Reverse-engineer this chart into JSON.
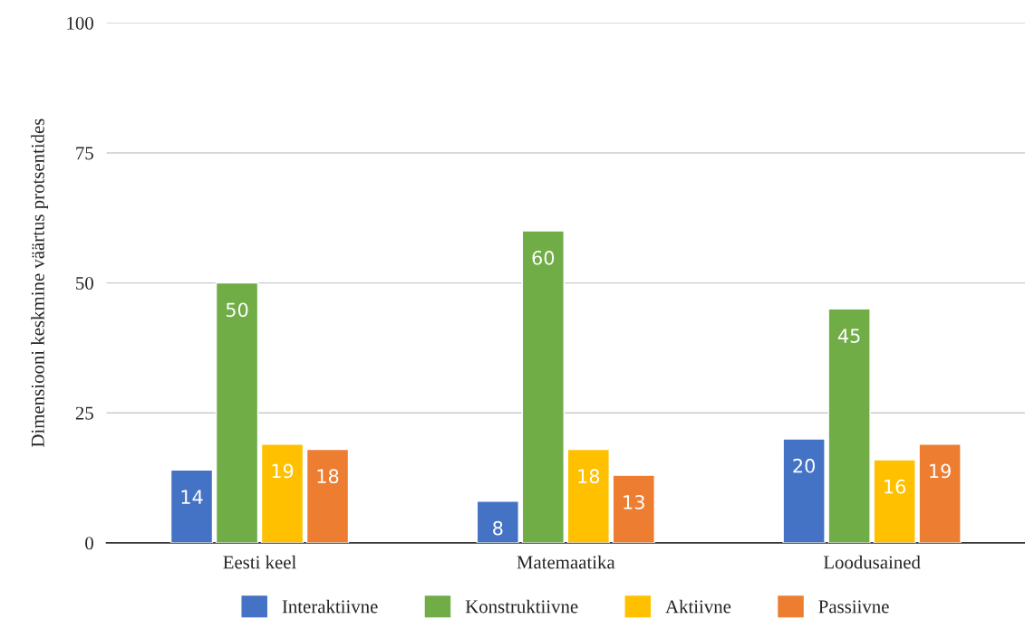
{
  "chart_data": {
    "type": "bar",
    "ylabel": "Dimensiooni keskmine väärtus protsentides",
    "categories": [
      "Eesti keel",
      "Matemaatika",
      "Loodusained"
    ],
    "series": [
      {
        "name": "Interaktiivne",
        "color": "#4472c4",
        "values": [
          14,
          8,
          20
        ]
      },
      {
        "name": "Konstruktiivne",
        "color": "#70ad47",
        "values": [
          50,
          60,
          45
        ]
      },
      {
        "name": "Aktiivne",
        "color": "#ffc000",
        "values": [
          19,
          18,
          16
        ]
      },
      {
        "name": "Passiivne",
        "color": "#ed7d31",
        "values": [
          18,
          13,
          19
        ]
      }
    ],
    "ylim": [
      0,
      100
    ],
    "yticks": [
      0,
      25,
      50,
      75,
      100
    ],
    "grid": "y",
    "legend": "bottom",
    "data_labels": true
  }
}
